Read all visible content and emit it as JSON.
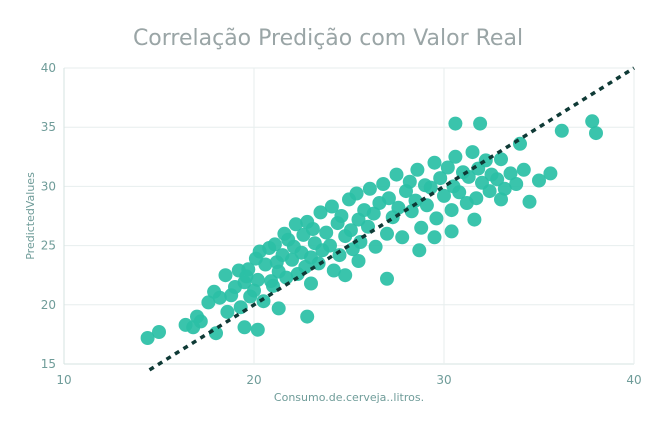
{
  "chart_data": {
    "type": "scatter",
    "title": "Correlação Predição com Valor Real",
    "xlabel": "Consumo.de.cerveja..litros.",
    "ylabel": "PredictedValues",
    "xlim": [
      10,
      40
    ],
    "ylim": [
      15,
      40
    ],
    "xticks": [
      "10",
      "20",
      "30",
      "40"
    ],
    "yticks": [
      "15",
      "20",
      "25",
      "30",
      "35",
      "40"
    ],
    "grid": true,
    "colors": {
      "points": "#2bbfa6",
      "reference_line": "#0f3a36",
      "title": "#9aa5a6",
      "ticks": "#6f9c99"
    },
    "reference_line": {
      "name": "y = x",
      "x": [
        14.5,
        40
      ],
      "y": [
        14.5,
        40
      ],
      "style": "dotted"
    },
    "series": [
      {
        "name": "PredictedValues",
        "x": [
          14.4,
          15.0,
          16.4,
          16.8,
          17.0,
          17.2,
          17.6,
          17.9,
          18.2,
          18.5,
          18.6,
          18.8,
          19.0,
          19.2,
          19.3,
          19.5,
          19.6,
          19.7,
          19.8,
          20.0,
          20.1,
          20.2,
          20.3,
          20.5,
          20.6,
          20.8,
          20.9,
          21.0,
          21.1,
          21.2,
          21.3,
          21.5,
          21.6,
          21.7,
          21.8,
          22.0,
          22.1,
          22.2,
          22.3,
          22.5,
          22.6,
          22.7,
          22.8,
          23.0,
          23.1,
          23.2,
          23.4,
          23.5,
          23.6,
          23.8,
          24.0,
          24.1,
          24.2,
          24.4,
          24.5,
          24.6,
          24.8,
          25.0,
          25.1,
          25.2,
          25.4,
          25.5,
          25.6,
          25.8,
          26.0,
          26.1,
          26.3,
          26.4,
          26.6,
          26.8,
          27.0,
          27.1,
          27.3,
          27.5,
          27.6,
          27.8,
          28.0,
          28.2,
          28.3,
          28.5,
          28.6,
          28.8,
          29.0,
          29.1,
          29.3,
          29.5,
          29.6,
          29.8,
          30.0,
          30.2,
          30.4,
          30.5,
          30.6,
          30.8,
          31.0,
          31.2,
          31.3,
          31.5,
          31.7,
          31.8,
          32.0,
          32.2,
          32.4,
          32.5,
          32.8,
          33.0,
          33.2,
          33.5,
          33.8,
          34.0,
          34.2,
          34.5,
          35.0,
          35.6,
          36.2,
          37.8,
          38.0,
          30.6,
          31.9,
          18.0,
          19.5,
          20.2,
          21.3,
          22.8,
          23.0,
          24.8,
          25.5,
          27.0,
          28.7,
          29.5,
          30.4,
          31.6,
          33.0
        ],
        "y": [
          17.2,
          17.7,
          18.3,
          18.1,
          19.0,
          18.6,
          20.2,
          21.1,
          20.6,
          22.5,
          19.4,
          20.8,
          21.5,
          22.9,
          19.8,
          21.9,
          22.4,
          23.0,
          20.7,
          21.2,
          23.9,
          22.1,
          24.5,
          20.3,
          23.4,
          24.8,
          22.0,
          21.6,
          25.1,
          23.6,
          22.8,
          24.2,
          26.0,
          22.3,
          25.5,
          23.8,
          24.9,
          26.8,
          22.6,
          24.4,
          25.9,
          23.2,
          27.0,
          24.0,
          26.4,
          25.2,
          23.5,
          27.8,
          24.6,
          26.1,
          25.0,
          28.3,
          22.9,
          26.9,
          24.2,
          27.5,
          25.8,
          28.9,
          26.3,
          24.7,
          29.4,
          27.2,
          25.3,
          28.0,
          26.6,
          29.8,
          27.7,
          24.9,
          28.6,
          30.2,
          26.0,
          29.0,
          27.4,
          31.0,
          28.2,
          25.7,
          29.6,
          30.4,
          27.9,
          28.8,
          31.4,
          26.5,
          30.1,
          28.4,
          29.9,
          32.0,
          27.3,
          30.7,
          29.2,
          31.6,
          28.0,
          30.0,
          32.5,
          29.5,
          31.2,
          28.6,
          30.8,
          32.9,
          29.0,
          31.5,
          30.3,
          32.2,
          29.6,
          31.0,
          30.6,
          32.3,
          29.8,
          31.1,
          30.2,
          33.6,
          31.4,
          28.7,
          30.5,
          31.1,
          34.7,
          35.5,
          34.5,
          35.3,
          35.3,
          17.6,
          18.1,
          17.9,
          19.7,
          19.0,
          21.8,
          22.5,
          23.7,
          22.2,
          24.6,
          25.7,
          26.2,
          27.2,
          28.9
        ]
      }
    ]
  }
}
